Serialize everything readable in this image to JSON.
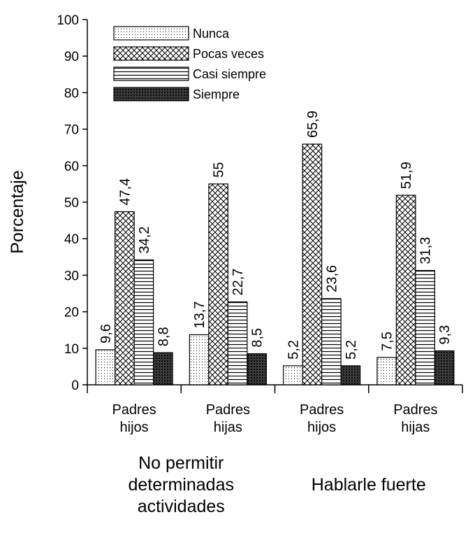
{
  "chart_data": {
    "type": "bar",
    "ylabel": "Porcentaje",
    "ylim": [
      0,
      100
    ],
    "yticks": [
      0,
      10,
      20,
      30,
      40,
      50,
      60,
      70,
      80,
      90,
      100
    ],
    "grid": false,
    "legend_position": "top-left",
    "categories": [
      "Padres hijos",
      "Padres hijas",
      "Padres hijos",
      "Padres hijas"
    ],
    "category_lines": [
      [
        "Padres",
        "hijos"
      ],
      [
        "Padres",
        "hijas"
      ],
      [
        "Padres",
        "hijos"
      ],
      [
        "Padres",
        "hijas"
      ]
    ],
    "groups": [
      {
        "lines": [
          "No permitir",
          "determinadas",
          "actividades"
        ],
        "categories": [
          0,
          1
        ]
      },
      {
        "lines": [
          "Hablarle fuerte"
        ],
        "categories": [
          2,
          3
        ]
      }
    ],
    "series": [
      {
        "name": "Nunca",
        "pattern": "dots",
        "values": [
          9.6,
          13.7,
          5.2,
          7.5
        ],
        "labels": [
          "9,6",
          "13,7",
          "5,2",
          "7,5"
        ]
      },
      {
        "name": "Pocas veces",
        "pattern": "crosshatch",
        "values": [
          47.4,
          55,
          65.9,
          51.9
        ],
        "labels": [
          "47,4",
          "55",
          "65,9",
          "51,9"
        ]
      },
      {
        "name": "Casi siempre",
        "pattern": "horizontal",
        "values": [
          34.2,
          22.7,
          23.6,
          31.3
        ],
        "labels": [
          "34,2",
          "22,7",
          "23,6",
          "31,3"
        ]
      },
      {
        "name": "Siempre",
        "pattern": "dense",
        "values": [
          8.8,
          8.5,
          5.2,
          9.3
        ],
        "labels": [
          "8,8",
          "8,5",
          "5,2",
          "9,3"
        ]
      }
    ]
  }
}
